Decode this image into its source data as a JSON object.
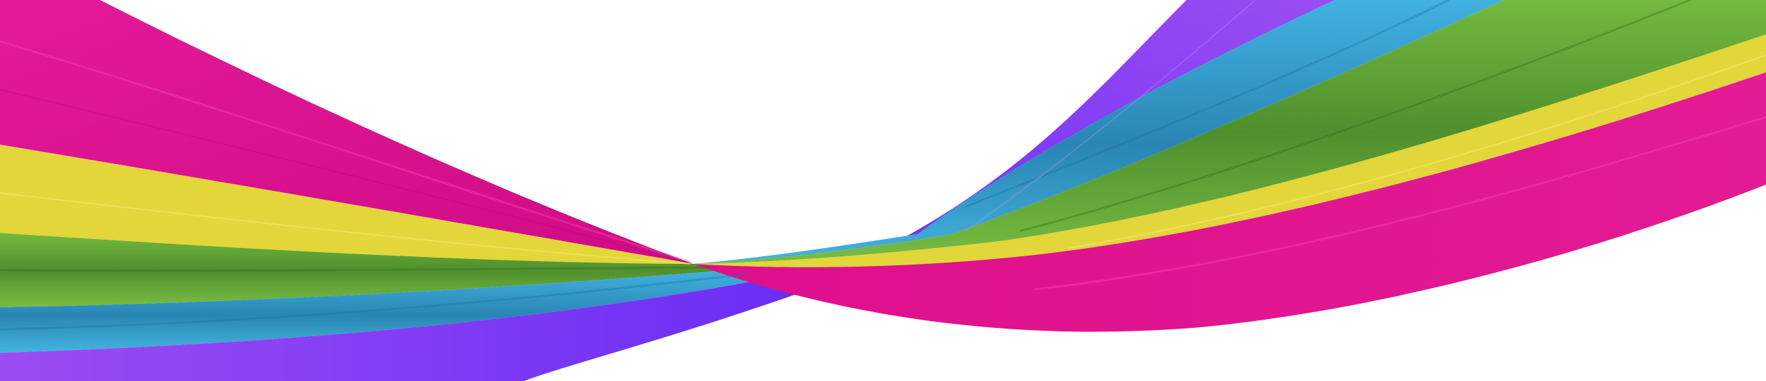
{
  "scene": {
    "background_color": "#ffffff",
    "subject": "twisted-rainbow-ribbon",
    "colors": {
      "magenta": "#e0118f",
      "magenta_dark": "#c70a80",
      "yellow": "#e2d63a",
      "green": "#6fb43d",
      "green_dark": "#4f8f2d",
      "cyan": "#3aa9d9",
      "cyan_dark": "#2a86b4",
      "purple": "#8b3ef0",
      "violet": "#6a2ef5"
    }
  }
}
